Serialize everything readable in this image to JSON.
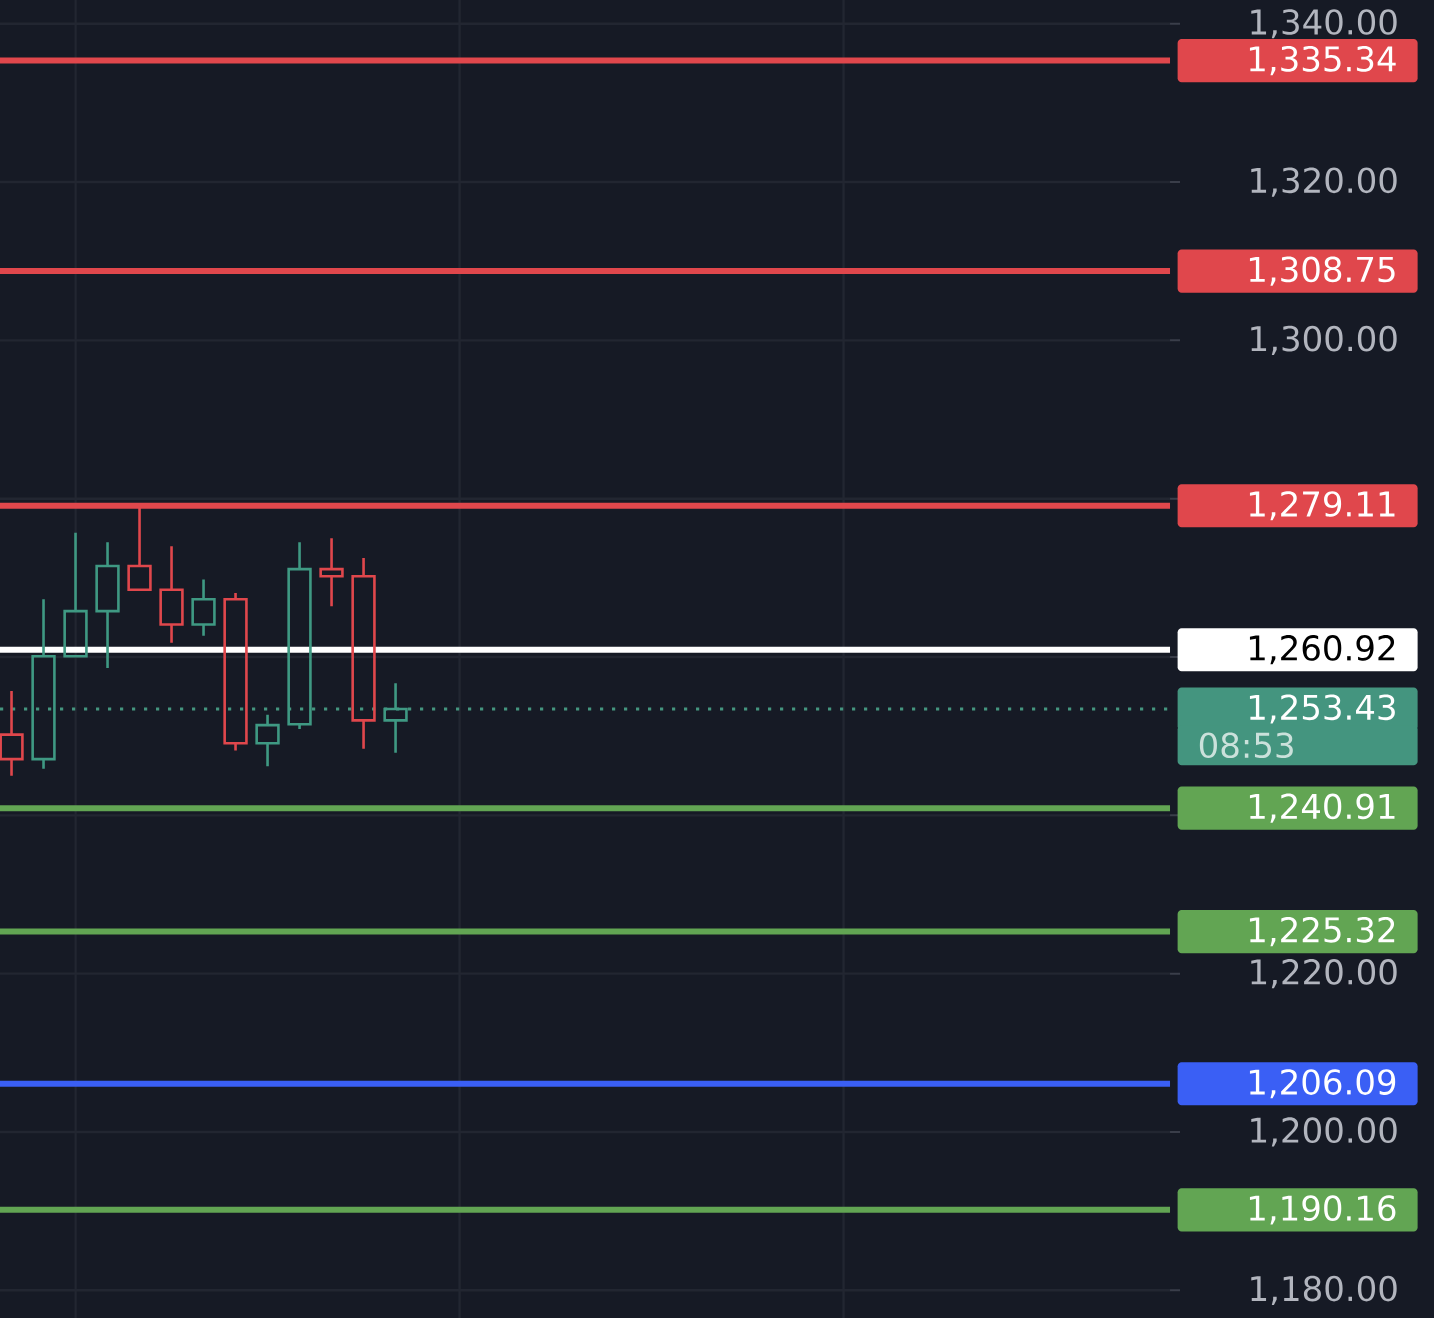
{
  "chart_data": {
    "type": "candlestick",
    "categories": [
      null,
      null,
      null,
      null,
      null,
      null,
      null,
      null,
      null,
      null,
      null,
      null,
      null,
      null,
      null,
      null,
      null,
      null,
      null,
      null,
      null,
      null,
      null,
      null,
      null,
      null,
      null,
      null,
      null,
      null,
      null,
      null,
      null,
      null,
      null,
      null,
      null
    ],
    "ohlc": [
      [
        1250.2,
        1255.7,
        1245.0,
        1247.1
      ],
      [
        1247.1,
        1267.3,
        1245.9,
        1260.1
      ],
      [
        1260.1,
        1275.7,
        1260.1,
        1265.8
      ],
      [
        1265.8,
        1274.5,
        1258.6,
        1271.5
      ],
      [
        1271.5,
        1278.9,
        1268.5,
        1268.5
      ],
      [
        1268.5,
        1274.0,
        1261.8,
        1264.1
      ],
      [
        1264.1,
        1269.8,
        1262.7,
        1267.3
      ],
      [
        1267.3,
        1268.1,
        1248.2,
        1249.1
      ],
      [
        1249.1,
        1252.7,
        1246.2,
        1251.4
      ],
      [
        1251.5,
        1274.5,
        1250.9,
        1271.1
      ],
      [
        1271.1,
        1275.0,
        1266.4,
        1270.2
      ],
      [
        1270.2,
        1272.5,
        1248.4,
        1252.0
      ],
      [
        1252.0,
        1256.7,
        1247.9,
        1253.43
      ],
      null,
      null,
      null,
      null,
      null,
      null,
      null,
      null,
      null,
      null,
      null,
      null,
      null,
      null,
      null,
      null,
      null,
      null,
      null,
      null,
      null,
      null,
      null,
      null
    ],
    "colors": [
      "#e0474c",
      "#3f9983",
      "#3f9983",
      "#3f9983",
      "#e0474c",
      "#e0474c",
      "#3f9983",
      "#e0474c",
      "#3f9983",
      "#3f9983",
      "#e0474c",
      "#e0474c",
      "#3f9983",
      null,
      null,
      null,
      null,
      null,
      null,
      null,
      null,
      null,
      null,
      null,
      null,
      null,
      null,
      null,
      null,
      null,
      null,
      null,
      null,
      null,
      null,
      null,
      null
    ],
    "ylim": [
      1176.5,
      1343
    ],
    "yticks": [
      {
        "value": 1180,
        "label": "1,180.00"
      },
      {
        "value": 1200,
        "label": "1,200.00"
      },
      {
        "value": 1220,
        "label": "1,220.00"
      },
      {
        "value": 1240,
        "label": null
      },
      {
        "value": 1260,
        "label": null
      },
      {
        "value": 1280,
        "label": null
      },
      {
        "value": 1300,
        "label": "1,300.00"
      },
      {
        "value": 1320,
        "label": "1,320.00"
      },
      {
        "value": 1340,
        "label": "1,340.00"
      }
    ],
    "grid": true,
    "tick_labels": "y",
    "ref_lines": [
      {
        "axis": "y",
        "value": 1335.34,
        "label": "1,335.34",
        "color": "#e0474c"
      },
      {
        "axis": "y",
        "value": 1308.75,
        "label": "1,308.75",
        "color": "#e0474c"
      },
      {
        "axis": "y",
        "value": 1279.11,
        "label": "1,279.11",
        "color": "#e0474c"
      },
      {
        "axis": "y",
        "value": 1260.92,
        "label": "1,260.92",
        "color": "#ffffff"
      },
      {
        "axis": "y",
        "value": 1253.43,
        "label": "1,253.43",
        "color": "#44957f",
        "line_style": "dotted"
      },
      {
        "axis": "y",
        "value": 1240.91,
        "label": "1,240.91",
        "color": "#62a553"
      },
      {
        "axis": "y",
        "value": 1225.32,
        "label": "1,225.32",
        "color": "#62a553"
      },
      {
        "axis": "y",
        "value": 1206.09,
        "label": "1,206.09",
        "color": "#3a5ff5"
      },
      {
        "axis": "y",
        "value": 1190.16,
        "label": "1,190.16",
        "color": "#62a553"
      }
    ],
    "annotations": [
      "08:53"
    ]
  }
}
